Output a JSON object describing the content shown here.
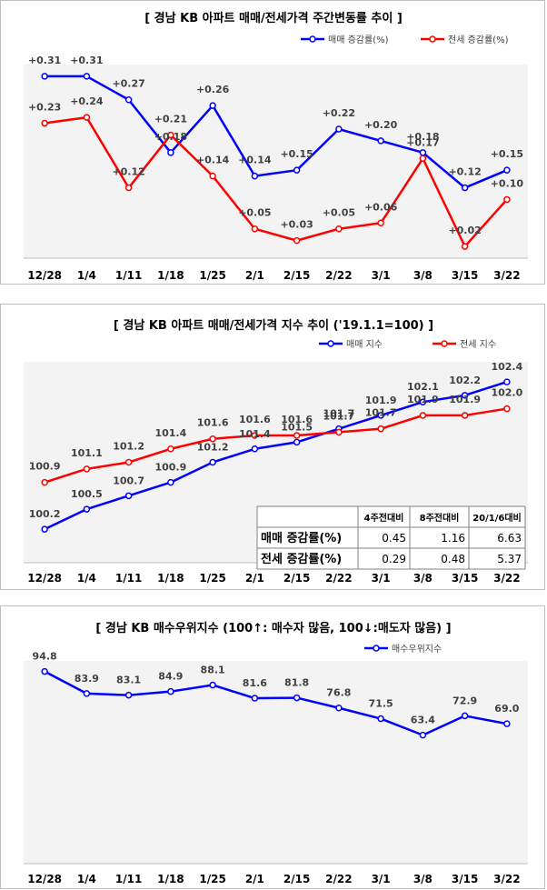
{
  "chart_data": [
    {
      "type": "line",
      "title": "[ 경남  KB 아파트 매매/전세가격 주간변동률 추이 ]",
      "categories": [
        "12/28",
        "1/4",
        "1/11",
        "1/18",
        "1/25",
        "2/1",
        "2/15",
        "2/22",
        "3/1",
        "3/8",
        "3/15",
        "3/22"
      ],
      "series": [
        {
          "name": "매매 증감률(%)",
          "color": "#0000ff",
          "values": [
            0.31,
            0.31,
            0.27,
            0.18,
            0.26,
            0.14,
            0.15,
            0.22,
            0.2,
            0.18,
            0.12,
            0.15
          ],
          "labels": [
            "+0.31",
            "+0.31",
            "+0.27",
            "+0.18",
            "+0.26",
            "+0.14",
            "+0.15",
            "+0.22",
            "+0.20",
            "+0.18",
            "+0.12",
            "+0.15"
          ]
        },
        {
          "name": "전세 증감률(%)",
          "color": "#ff0000",
          "values": [
            0.23,
            0.24,
            0.12,
            0.21,
            0.14,
            0.05,
            0.03,
            0.05,
            0.06,
            0.17,
            0.02,
            0.1
          ],
          "labels": [
            "+0.23",
            "+0.24",
            "+0.12",
            "+0.21",
            "+0.14",
            "+0.05",
            "+0.03",
            "+0.05",
            "+0.06",
            "+0.17",
            "+0.02",
            "+0.10"
          ]
        }
      ],
      "ylim": [
        0.0,
        0.33
      ],
      "legend": "top-right"
    },
    {
      "type": "line",
      "title": "[  경남  KB 아파트 매매/전세가격 지수 추이 ('19.1.1=100)  ]",
      "categories": [
        "12/28",
        "1/4",
        "1/11",
        "1/18",
        "1/25",
        "2/1",
        "2/15",
        "2/22",
        "3/1",
        "3/8",
        "3/15",
        "3/22"
      ],
      "series": [
        {
          "name": "매매 지수",
          "color": "#0000ff",
          "values": [
            100.2,
            100.5,
            100.7,
            100.9,
            101.2,
            101.4,
            101.5,
            101.7,
            101.9,
            102.1,
            102.2,
            102.4
          ],
          "labels": [
            "100.2",
            "100.5",
            "100.7",
            "100.9",
            "101.2",
            "101.4",
            "101.5",
            "101.7",
            "101.9",
            "102.1",
            "102.2",
            "102.4"
          ]
        },
        {
          "name": "전세 지수",
          "color": "#ff0000",
          "values": [
            100.9,
            101.1,
            101.2,
            101.4,
            101.55,
            101.6,
            101.6,
            101.65,
            101.7,
            101.9,
            101.9,
            102.0
          ],
          "labels": [
            "100.9",
            "101.1",
            "101.2",
            "101.4",
            "101.6",
            "101.6",
            "101.6",
            "101.7",
            "101.7",
            "101.9",
            "101.9",
            "102.0"
          ]
        }
      ],
      "ylim": [
        99.7,
        102.7
      ],
      "legend": "top-right",
      "table": {
        "columns": [
          "",
          "4주전대비",
          "8주전대비",
          "20/1/6대비"
        ],
        "rows": [
          [
            "매매 증감률(%)",
            "0.45",
            "1.16",
            "6.63"
          ],
          [
            "전세 증감률(%)",
            "0.29",
            "0.48",
            "5.37"
          ]
        ]
      }
    },
    {
      "type": "line",
      "title": "[  경남  KB 매수우위지수 (100↑: 매수자 많음, 100↓:매도자 많음)  ]",
      "categories": [
        "12/28",
        "1/4",
        "1/11",
        "1/18",
        "1/25",
        "2/1",
        "2/15",
        "2/22",
        "3/1",
        "3/8",
        "3/15",
        "3/22"
      ],
      "series": [
        {
          "name": "매수우위지수",
          "color": "#0000ff",
          "values": [
            94.8,
            83.9,
            83.1,
            84.9,
            88.1,
            81.6,
            81.8,
            76.8,
            71.5,
            63.4,
            72.9,
            69.0
          ],
          "labels": [
            "94.8",
            "83.9",
            "83.1",
            "84.9",
            "88.1",
            "81.6",
            "81.8",
            "76.8",
            "71.5",
            "63.4",
            "72.9",
            "69.0"
          ]
        }
      ],
      "ylim": [
        0,
        100
      ],
      "legend": "top-right"
    }
  ]
}
